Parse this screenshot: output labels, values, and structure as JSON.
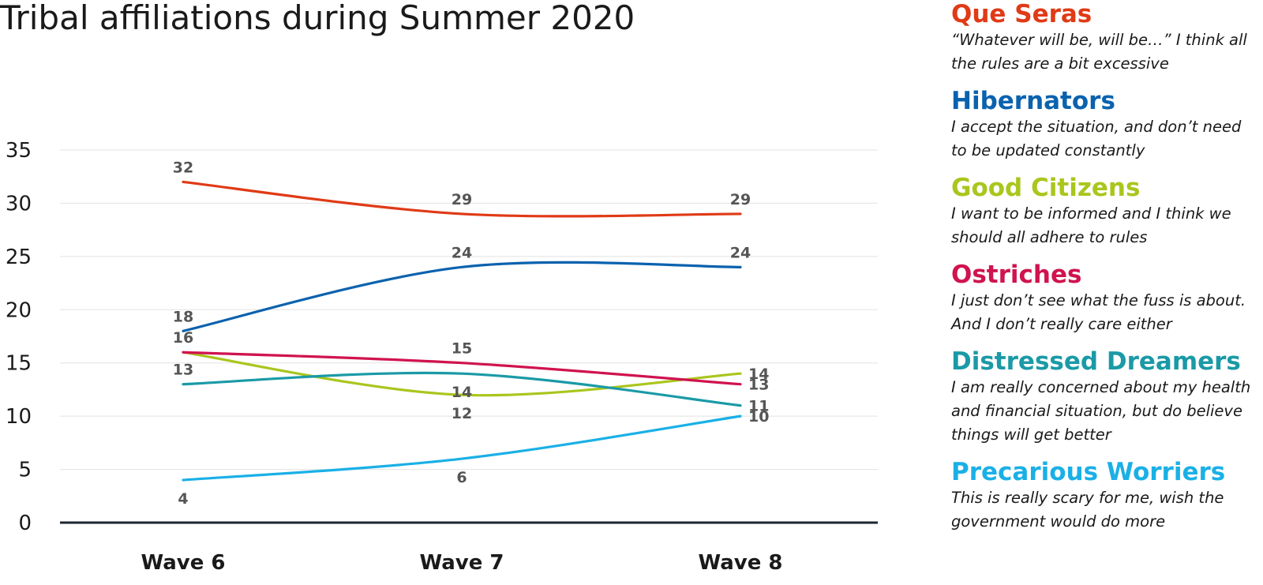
{
  "chart_data": {
    "type": "line",
    "title": "Tribal affiliations during Summer 2020",
    "categories": [
      "Wave 6",
      "Wave 7",
      "Wave 8"
    ],
    "ylim": [
      0,
      35
    ],
    "yticks": [
      0,
      5,
      10,
      15,
      20,
      25,
      30,
      35
    ],
    "grid": true,
    "legend_position": "right",
    "series": [
      {
        "name": "Que Seras",
        "color": "#e03a16",
        "values": [
          32,
          29,
          29
        ],
        "label_pos": [
          "above",
          "above",
          "above"
        ]
      },
      {
        "name": "Hibernators",
        "color": "#0a62ae",
        "values": [
          18,
          24,
          24
        ],
        "label_pos": [
          "above",
          "above",
          "above"
        ]
      },
      {
        "name": "Good Citizens",
        "color": "#a9c61d",
        "values": [
          16,
          12,
          14
        ],
        "label_pos": [
          "above",
          "below",
          "right"
        ]
      },
      {
        "name": "Ostriches",
        "color": "#d0134f",
        "values": [
          16,
          15,
          13
        ],
        "label_pos": [
          "none",
          "above",
          "right"
        ]
      },
      {
        "name": "Distressed Dreamers",
        "color": "#1a9aa6",
        "values": [
          13,
          14,
          11
        ],
        "label_pos": [
          "above",
          "below",
          "right"
        ]
      },
      {
        "name": "Precarious Worriers",
        "color": "#1ab0e6",
        "values": [
          4,
          6,
          10
        ],
        "label_pos": [
          "below",
          "below",
          "right"
        ]
      }
    ]
  },
  "legend": [
    {
      "name": "Que Seras",
      "color": "#e03a16",
      "lines": [
        "“Whatever will be, will be…” I think all",
        "the rules are a bit excessive"
      ]
    },
    {
      "name": "Hibernators",
      "color": "#0a62ae",
      "lines": [
        "I accept the situation, and don’t need",
        "to be updated constantly"
      ]
    },
    {
      "name": "Good Citizens",
      "color": "#a9c61d",
      "lines": [
        "I want to be informed and I think we",
        "should all adhere to rules"
      ]
    },
    {
      "name": "Ostriches",
      "color": "#d0134f",
      "lines": [
        "I just don’t see what the fuss is about.",
        "And I don’t really care either"
      ]
    },
    {
      "name": "Distressed Dreamers",
      "color": "#1a9aa6",
      "lines": [
        "I am really concerned about my health",
        "and financial situation, but do believe",
        "things will get better"
      ]
    },
    {
      "name": "Precarious Worriers",
      "color": "#1ab0e6",
      "lines": [
        "This is really scary for me, wish the",
        "government would do more"
      ]
    }
  ]
}
